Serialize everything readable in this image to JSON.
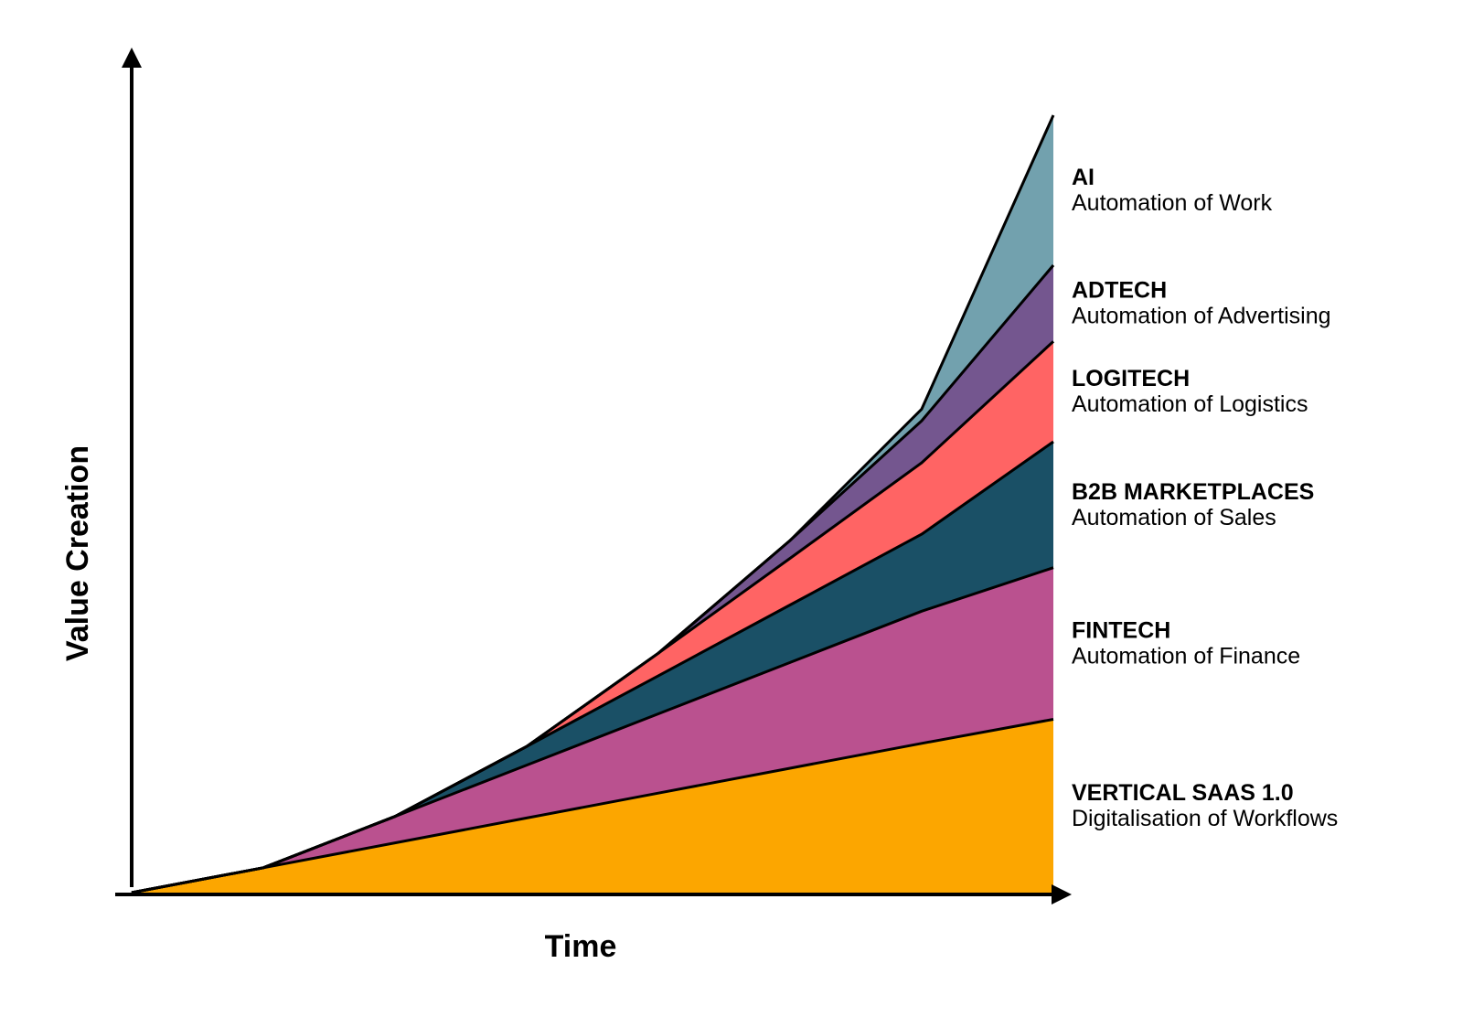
{
  "chart_data": {
    "type": "area",
    "stacked": true,
    "title": "",
    "xlabel": "Time",
    "ylabel": "Value Creation",
    "x": [
      0,
      1,
      2,
      3,
      4,
      5,
      6,
      7
    ],
    "xlim": [
      0,
      7
    ],
    "ylim": [
      0,
      100
    ],
    "grid": false,
    "axis_ticks": false,
    "legend": "direct labels at right",
    "series": [
      {
        "name": "VERTICAL SAAS 1.0",
        "description": "Digitalisation of Workflows",
        "color": "#FCA600",
        "values": [
          0,
          3.2,
          6.4,
          9.6,
          12.8,
          16.0,
          19.2,
          22.3
        ]
      },
      {
        "name": "FINTECH",
        "description": "Automation of Finance",
        "color": "#BA518F",
        "values": [
          0,
          0,
          3.4,
          6.8,
          10.2,
          13.6,
          17.0,
          19.5
        ]
      },
      {
        "name": "B2B MARKETPLACES",
        "description": "Automation of Sales",
        "color": "#1A5066",
        "values": [
          0,
          0,
          0,
          2.4,
          4.9,
          7.4,
          9.9,
          16.2
        ]
      },
      {
        "name": "LOGITECH",
        "description": "Automation of Logistics",
        "color": "#FF6464",
        "values": [
          0,
          0,
          0,
          0,
          2.9,
          6.0,
          9.2,
          12.9
        ]
      },
      {
        "name": "ADTECH",
        "description": "Automation of Advertising",
        "color": "#74568F",
        "values": [
          0,
          0,
          0,
          0,
          0,
          2.3,
          5.4,
          9.8
        ]
      },
      {
        "name": "AI",
        "description": "Automation of Work",
        "color": "#72A1AE",
        "values": [
          0,
          0,
          0,
          0,
          0,
          0,
          1.5,
          19.3
        ]
      }
    ]
  }
}
